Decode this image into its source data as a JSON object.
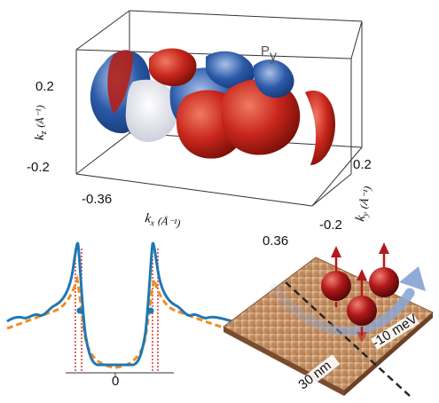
{
  "fermi_surface": {
    "orbital_label": "P",
    "orbital_subscript": "y",
    "kz_axis": {
      "symbol": "k",
      "subscript": "z",
      "unit": "(Å⁻¹)",
      "ticks": [
        "0.2",
        "-0.2"
      ]
    },
    "kx_axis": {
      "symbol": "k",
      "subscript": "x",
      "unit": "(Å⁻¹)",
      "ticks": [
        "-0.36",
        "0.36"
      ]
    },
    "ky_axis": {
      "symbol": "k",
      "subscript": "y",
      "unit": "(Å⁻¹)",
      "ticks": [
        "0.2",
        "-0.2"
      ]
    },
    "colors": {
      "positive": "#c8261c",
      "negative": "#2c5aa8",
      "neutral": "#e8e8ec"
    }
  },
  "spectrum": {
    "center_tick": "0",
    "colors": {
      "measured": "#1f77b4",
      "fit": "#f28e1c",
      "marker": "#d62728"
    }
  },
  "stm_map": {
    "scale_bar": "30 nm",
    "energy_label": "-10 meV",
    "colors": {
      "surface": "#c9966a",
      "arrow": "#8aa6d6",
      "spin": "#b3191c",
      "cut_line": "#222222"
    }
  }
}
